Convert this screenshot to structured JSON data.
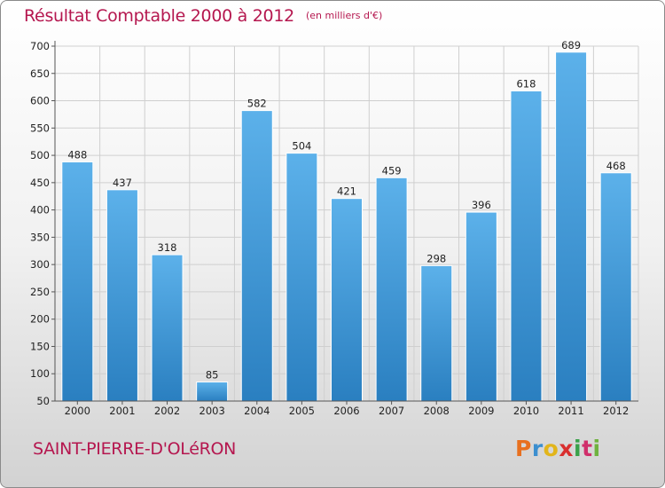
{
  "header": {
    "title": "Résultat Comptable 2000 à 2012",
    "unit": "(en milliers d'€)"
  },
  "commune": "SAINT-PIERRE-D'OLéRON",
  "brand": {
    "letters": [
      "P",
      "r",
      "o",
      "x",
      "i",
      "t",
      "i"
    ],
    "colors": [
      "#e8701f",
      "#3c8fcf",
      "#e2b51b",
      "#d92f2f",
      "#3aa14a",
      "#d02f6b",
      "#6fb23f"
    ]
  },
  "colors": {
    "title": "#b5174f",
    "bar_top": "#5cb1ea",
    "bar_bottom": "#2a7fc0",
    "grid": "#cfcfcf",
    "axis_text": "#222222"
  },
  "chart_data": {
    "type": "bar",
    "categories": [
      "2000",
      "2001",
      "2002",
      "2003",
      "2004",
      "2005",
      "2006",
      "2007",
      "2008",
      "2009",
      "2010",
      "2011",
      "2012"
    ],
    "values": [
      488,
      437,
      318,
      85,
      582,
      504,
      421,
      459,
      298,
      396,
      618,
      689,
      468
    ],
    "yticks": [
      50,
      100,
      150,
      200,
      250,
      300,
      350,
      400,
      450,
      500,
      550,
      600,
      650,
      700
    ],
    "ylim": [
      50,
      700
    ],
    "grid": true
  }
}
